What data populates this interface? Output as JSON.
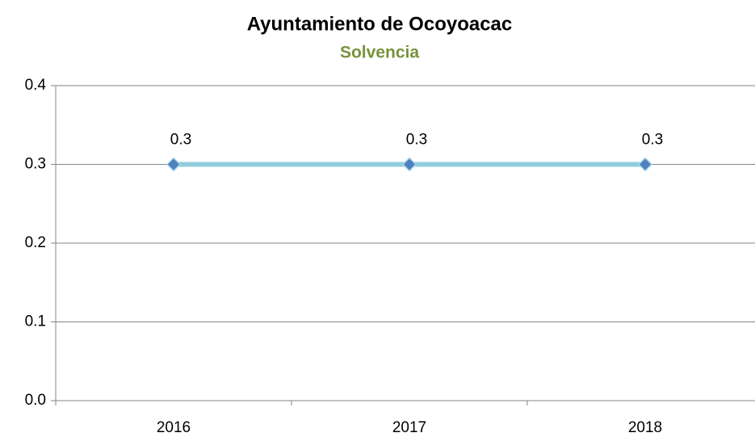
{
  "chart_data": {
    "type": "line",
    "title": "Ayuntamiento de Ocoyoacac",
    "subtitle": "Solvencia",
    "categories": [
      "2016",
      "2017",
      "2018"
    ],
    "series": [
      {
        "name": "Solvencia",
        "color": "#92cddc",
        "marker_color": "#4f81bd",
        "values": [
          0.3,
          0.3,
          0.3
        ]
      }
    ],
    "ylim": [
      0,
      0.4
    ],
    "yticks": [
      {
        "value": 0,
        "label": "0.0"
      },
      0.1,
      0.2,
      0.3,
      0.4
    ],
    "grid": true
  }
}
